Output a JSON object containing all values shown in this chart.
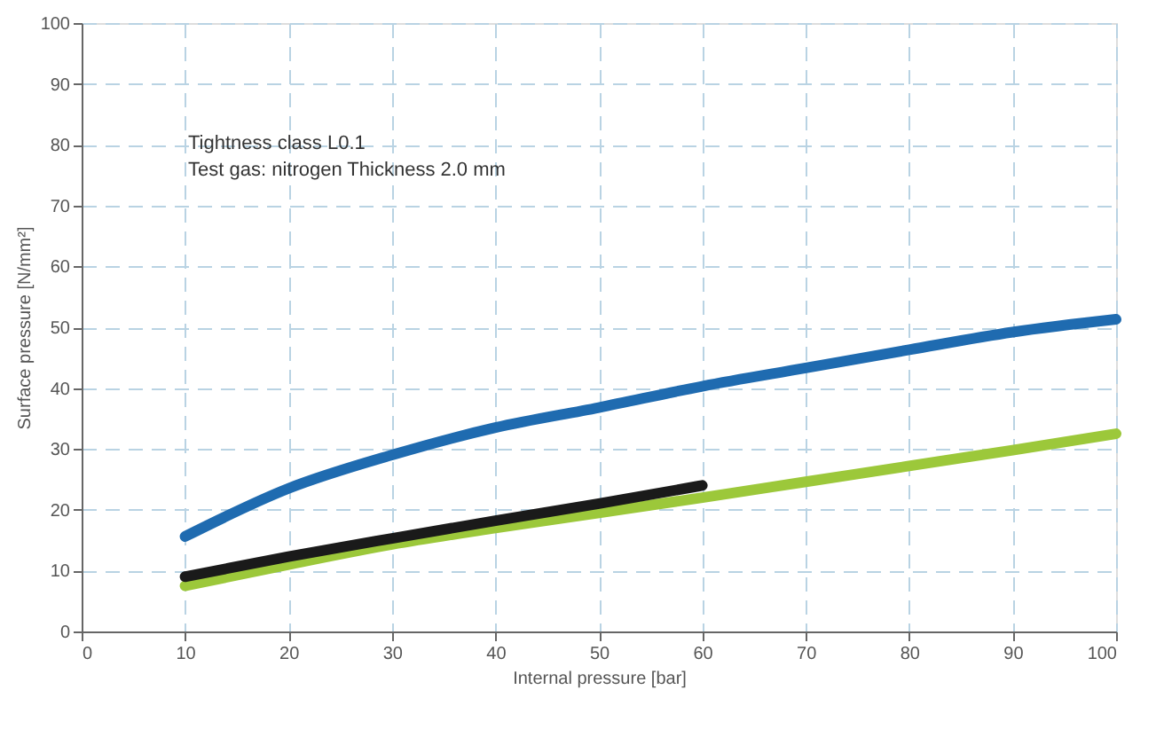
{
  "chart_data": {
    "type": "line",
    "xlabel": "Internal pressure [bar]",
    "ylabel": "Surface pressure [N/mm²]",
    "annotations": [
      "Tightness class L0.1",
      "Test gas: nitrogen    Thickness 2.0 mm"
    ],
    "x": [
      10,
      20,
      30,
      40,
      50,
      60,
      70,
      80,
      90,
      100
    ],
    "series": [
      {
        "color": "#1f6bb0",
        "values": [
          15.6,
          23.5,
          29,
          33.5,
          36.8,
          40.3,
          43.3,
          46.3,
          49.2,
          51.3
        ]
      },
      {
        "color": "#9cc83a",
        "values": [
          7.5,
          11,
          14.3,
          17,
          19.5,
          22,
          24.6,
          27.2,
          29.8,
          32.5
        ]
      },
      {
        "color": "#1a1a1a",
        "x": [
          10,
          20,
          30,
          40,
          50,
          60
        ],
        "values": [
          9,
          12.3,
          15.3,
          18.2,
          21,
          24
        ]
      }
    ],
    "xlim": [
      0,
      100
    ],
    "ylim": [
      0,
      100
    ],
    "xticks": [
      0,
      10,
      20,
      30,
      40,
      50,
      60,
      70,
      80,
      90,
      100
    ],
    "yticks": [
      0,
      10,
      20,
      30,
      40,
      50,
      60,
      70,
      80,
      90,
      100
    ],
    "grid": true,
    "line_style": "solid",
    "marker": "none"
  }
}
